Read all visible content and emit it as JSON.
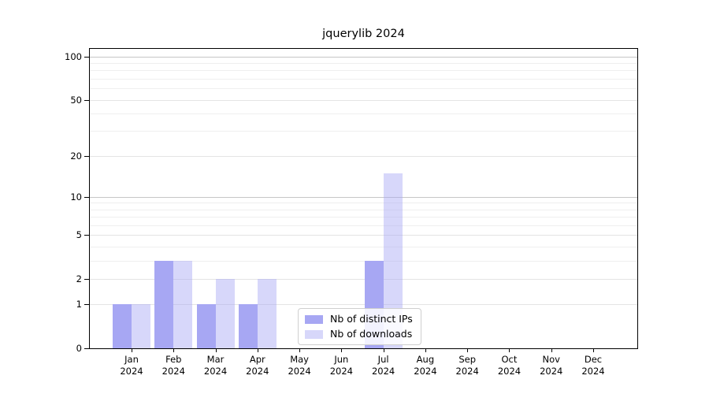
{
  "chart_data": {
    "type": "bar",
    "title": "jquerylib 2024",
    "categories": [
      "Jan 2024",
      "Feb 2024",
      "Mar 2024",
      "Apr 2024",
      "May 2024",
      "Jun 2024",
      "Jul 2024",
      "Aug 2024",
      "Sep 2024",
      "Oct 2024",
      "Nov 2024",
      "Dec 2024"
    ],
    "month_labels": [
      "Jan",
      "Feb",
      "Mar",
      "Apr",
      "May",
      "Jun",
      "Jul",
      "Aug",
      "Sep",
      "Oct",
      "Nov",
      "Dec"
    ],
    "year_label": "2024",
    "series": [
      {
        "name": "Nb of distinct IPs",
        "color": "#a7a7f3",
        "opacity": 1,
        "values": [
          1,
          3,
          1,
          1,
          0,
          0,
          3,
          0,
          0,
          0,
          0,
          0
        ]
      },
      {
        "name": "Nb of downloads",
        "color": "#a7a7f3",
        "opacity": 0.45,
        "values": [
          1,
          3,
          2,
          2,
          0,
          0,
          15,
          0,
          0,
          0,
          0,
          0
        ]
      }
    ],
    "yscale": "log1p",
    "y_ticks": [
      0,
      1,
      2,
      5,
      10,
      20,
      50,
      100
    ],
    "y_tick_labels": [
      "0",
      "1",
      "2",
      "5",
      "10",
      "20",
      "50",
      "100"
    ],
    "y_minor_ticks": [
      3,
      4,
      6,
      7,
      8,
      9,
      30,
      40,
      60,
      70,
      80,
      90
    ],
    "ylim": [
      0,
      113
    ],
    "grid": "horizontal",
    "legend_position": "lower-center-inside",
    "legend_labels": [
      "Nb of distinct IPs",
      "Nb of downloads"
    ]
  }
}
